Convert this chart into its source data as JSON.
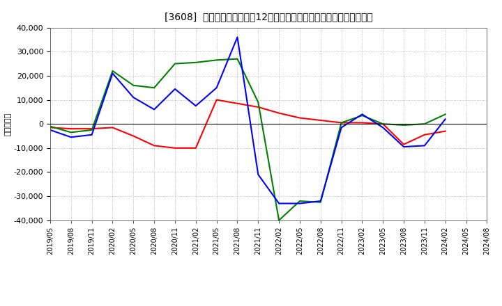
{
  "title": "[3608]  キャッシュフローの12か月移動合計の対前年同期増減額の推移",
  "ylabel": "（百万円）",
  "bg_color": "#ffffff",
  "plot_bg_color": "#ffffff",
  "grid_color": "#aaaaaa",
  "ylim": [
    -40000,
    40000
  ],
  "yticks": [
    -40000,
    -30000,
    -20000,
    -10000,
    0,
    10000,
    20000,
    30000,
    40000
  ],
  "x_labels": [
    "2019/05",
    "2019/08",
    "2019/11",
    "2020/02",
    "2020/05",
    "2020/08",
    "2020/11",
    "2021/02",
    "2021/05",
    "2021/08",
    "2021/11",
    "2022/02",
    "2022/05",
    "2022/08",
    "2022/11",
    "2023/02",
    "2023/05",
    "2023/08",
    "2023/11",
    "2024/02",
    "2024/05",
    "2024/08"
  ],
  "operating_cf": [
    -1500,
    -2000,
    -2000,
    -1500,
    -5000,
    -9000,
    -10000,
    -10000,
    10000,
    8500,
    7000,
    4500,
    2500,
    1500,
    500,
    500,
    0,
    -8500,
    -4500,
    -3000,
    null,
    null
  ],
  "investing_cf": [
    -1000,
    -3500,
    -2500,
    22000,
    16000,
    15000,
    25000,
    25500,
    26500,
    27000,
    9000,
    -40000,
    -32000,
    -32500,
    500,
    3500,
    0,
    -500,
    0,
    4000,
    null,
    null
  ],
  "free_cf": [
    -2500,
    -5500,
    -4500,
    21000,
    11000,
    6000,
    14500,
    7500,
    15000,
    36000,
    -21000,
    -33000,
    -33000,
    -32000,
    -1500,
    4000,
    -1500,
    -9500,
    -9000,
    2000,
    null,
    null
  ],
  "operating_color": "#ff0000",
  "investing_color": "#008000",
  "free_color": "#0000ff",
  "line_width": 1.5
}
